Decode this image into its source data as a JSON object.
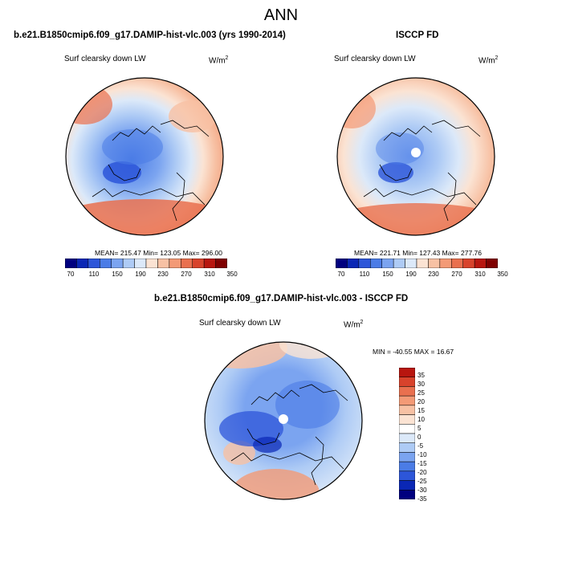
{
  "header": {
    "title": "ANN",
    "model_case": "b.e21.B1850cmip6.f09_g17.DAMIP-hist-vlc.003 (yrs 1990-2014)",
    "obs_case": "ISCCP FD",
    "diff_case": "b.e21.B1850cmip6.f09_g17.DAMIP-hist-vlc.003 - ISCCP FD"
  },
  "colors": {
    "abs_scale": [
      "#00007f",
      "#0a27b5",
      "#2d56d9",
      "#4b7ce6",
      "#7ba4f0",
      "#aecbf5",
      "#dce9f9",
      "#fbe3d3",
      "#f7c1a4",
      "#f39a76",
      "#e9704f",
      "#d8432c",
      "#b8160f",
      "#7f0000"
    ],
    "diff_scale": [
      "#b8160f",
      "#d8432c",
      "#e9704f",
      "#f39a76",
      "#f7c1a4",
      "#fbe3d3",
      "#ffffff",
      "#dce9f9",
      "#aecbf5",
      "#7ba4f0",
      "#4b7ce6",
      "#2d56d9",
      "#0a27b5",
      "#00007f"
    ]
  },
  "chart_data": [
    {
      "type": "heatmap",
      "projection": "north-polar-stereographic",
      "title": "b.e21.B1850cmip6.f09_g17.DAMIP-hist-vlc.003 (yrs 1990-2014)",
      "field_label": "Surf clearsky down LW",
      "units_base": "W/m",
      "units_exp": "2",
      "stats": "MEAN= 215.47  Min= 123.05  Max= 296.00",
      "colorbar_ticks": [
        "70",
        "110",
        "150",
        "190",
        "230",
        "270",
        "310",
        "350"
      ]
    },
    {
      "type": "heatmap",
      "projection": "north-polar-stereographic",
      "title": "ISCCP FD",
      "field_label": "Surf clearsky down LW",
      "units_base": "W/m",
      "units_exp": "2",
      "stats": "MEAN= 221.71  Min= 127.43  Max= 277.76",
      "colorbar_ticks": [
        "70",
        "110",
        "150",
        "190",
        "230",
        "270",
        "310",
        "350"
      ]
    },
    {
      "type": "heatmap",
      "projection": "north-polar-stereographic",
      "title": "b.e21.B1850cmip6.f09_g17.DAMIP-hist-vlc.003 - ISCCP FD",
      "field_label": "Surf clearsky down LW",
      "units_base": "W/m",
      "units_exp": "2",
      "stats": "MIN = -40.55 MAX =  16.67",
      "colorbar_ticks": [
        "35",
        "30",
        "25",
        "20",
        "15",
        "10",
        "5",
        "0",
        "-5",
        "-10",
        "-15",
        "-20",
        "-25",
        "-30",
        "-35"
      ]
    }
  ]
}
